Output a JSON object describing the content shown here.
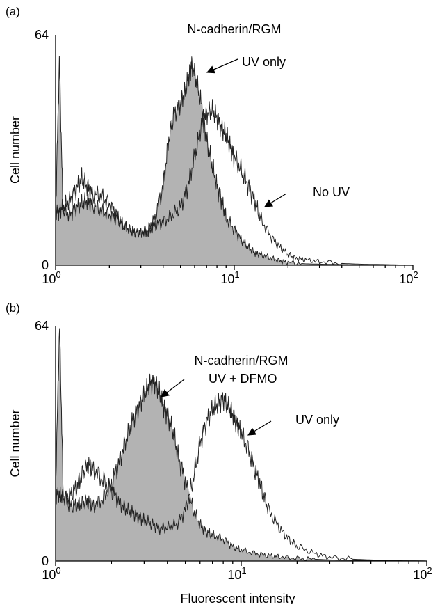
{
  "chart_data": [
    {
      "panel_label": "(a)",
      "type": "area",
      "title": "N-cadherin/RGM",
      "xlabel": "",
      "ylabel": "Cell number",
      "x_scale": "log",
      "xlim": [
        1,
        100
      ],
      "ylim": [
        0,
        64
      ],
      "y_tick_labels": [
        "0",
        "64"
      ],
      "x_tick_labels": [
        {
          "base": "10",
          "exp": "0"
        },
        {
          "base": "10",
          "exp": "1"
        },
        {
          "base": "10",
          "exp": "2"
        }
      ],
      "series": [
        {
          "name": "UV only",
          "style": "filled",
          "fill": "#b3b3b3",
          "stroke": "#222222",
          "x": [
            1,
            1.05,
            1.1,
            1.2,
            1.3,
            1.4,
            1.5,
            1.6,
            1.8,
            2,
            2.2,
            2.4,
            2.6,
            2.8,
            3,
            3.3,
            3.6,
            4,
            4.3,
            4.6,
            5,
            5.3,
            5.6,
            5.8,
            6.2,
            6.6,
            7,
            7.5,
            8,
            8.5,
            9,
            10,
            11,
            12,
            13,
            14,
            16,
            18,
            20,
            25,
            30,
            40,
            50,
            70,
            100
          ],
          "y": [
            14,
            57,
            15,
            14,
            16,
            17,
            18,
            17,
            15,
            14,
            13,
            11,
            10,
            9,
            9,
            10,
            13,
            22,
            35,
            42,
            45,
            48,
            53,
            56,
            50,
            44,
            35,
            28,
            22,
            18,
            13,
            10,
            7,
            5,
            3.5,
            3,
            2,
            1.2,
            0.8,
            0.4,
            0.3,
            0.2,
            0.1,
            0.1,
            0
          ]
        },
        {
          "name": "No UV",
          "style": "outline",
          "stroke": "#222222",
          "x": [
            1,
            1.05,
            1.1,
            1.2,
            1.3,
            1.4,
            1.5,
            1.6,
            1.8,
            2,
            2.2,
            2.4,
            2.6,
            2.8,
            3,
            3.3,
            3.6,
            4,
            4.5,
            5,
            5.5,
            6,
            6.5,
            7,
            7.5,
            8,
            8.5,
            9,
            9.5,
            10,
            11,
            12,
            13,
            14,
            16,
            18,
            20,
            22,
            25,
            30,
            40,
            50,
            70,
            100
          ],
          "y": [
            15,
            15,
            16,
            18,
            21,
            24,
            22,
            20,
            19,
            17,
            14,
            11,
            10,
            9,
            9,
            9,
            11,
            12,
            14,
            16,
            22,
            30,
            38,
            42,
            43,
            41,
            38,
            36,
            33,
            30,
            26,
            22,
            18,
            13,
            8,
            5,
            3,
            2,
            1.5,
            1,
            0.5,
            0.3,
            0.2,
            0
          ]
        }
      ],
      "annotations": [
        {
          "text": "UV only",
          "x": 7.0,
          "y": 55
        },
        {
          "text": "No UV",
          "x": 13.5,
          "y": 15
        }
      ]
    },
    {
      "panel_label": "(b)",
      "type": "area",
      "title": "N-cadherin/RGM",
      "xlabel": "Fluorescent intensity",
      "ylabel": "Cell number",
      "x_scale": "log",
      "xlim": [
        1,
        100
      ],
      "ylim": [
        0,
        64
      ],
      "y_tick_labels": [
        "0",
        "64"
      ],
      "x_tick_labels": [
        {
          "base": "10",
          "exp": "0"
        },
        {
          "base": "10",
          "exp": "1"
        },
        {
          "base": "10",
          "exp": "2"
        }
      ],
      "series": [
        {
          "name": "UV + DFMO",
          "style": "filled",
          "fill": "#b3b3b3",
          "stroke": "#222222",
          "x": [
            1,
            1.05,
            1.1,
            1.2,
            1.3,
            1.4,
            1.5,
            1.6,
            1.8,
            2,
            2.2,
            2.4,
            2.6,
            2.8,
            3,
            3.2,
            3.4,
            3.6,
            3.8,
            4,
            4.3,
            4.6,
            5,
            5.5,
            6,
            6.5,
            7,
            8,
            9,
            10,
            12,
            14,
            16,
            20,
            25,
            30,
            40,
            60,
            100
          ],
          "y": [
            20,
            64,
            18,
            15,
            15,
            16,
            16,
            15,
            17,
            21,
            27,
            33,
            38,
            42,
            45,
            48,
            49,
            46,
            42,
            40,
            35,
            28,
            22,
            14,
            10,
            8,
            7,
            6,
            4,
            3,
            2,
            1.5,
            1.2,
            0.7,
            0.5,
            0.3,
            0.2,
            0.1,
            0
          ]
        },
        {
          "name": "UV only",
          "style": "outline",
          "stroke": "#222222",
          "x": [
            1,
            1.05,
            1.1,
            1.2,
            1.3,
            1.4,
            1.5,
            1.6,
            1.8,
            2,
            2.2,
            2.4,
            2.6,
            2.8,
            3,
            3.3,
            3.6,
            4,
            4.5,
            5,
            5.5,
            6,
            6.5,
            7,
            7.5,
            8,
            8.5,
            9,
            9.5,
            10,
            11,
            12,
            13,
            14,
            16,
            18,
            20,
            25,
            30,
            40,
            50,
            70,
            100
          ],
          "y": [
            18,
            18,
            17,
            18,
            20,
            24,
            26,
            25,
            22,
            19,
            16,
            14,
            13,
            12,
            11,
            10,
            9,
            9,
            10,
            14,
            22,
            32,
            38,
            41,
            43,
            44,
            42,
            40,
            37,
            35,
            30,
            24,
            19,
            14,
            9,
            6,
            4,
            2,
            1,
            0.5,
            0.3,
            0.1,
            0
          ]
        }
      ],
      "annotations": [
        {
          "text": "UV + DFMO",
          "x": 3.9,
          "y": 45
        },
        {
          "text": "UV only",
          "x": 10.8,
          "y": 35
        }
      ]
    }
  ]
}
